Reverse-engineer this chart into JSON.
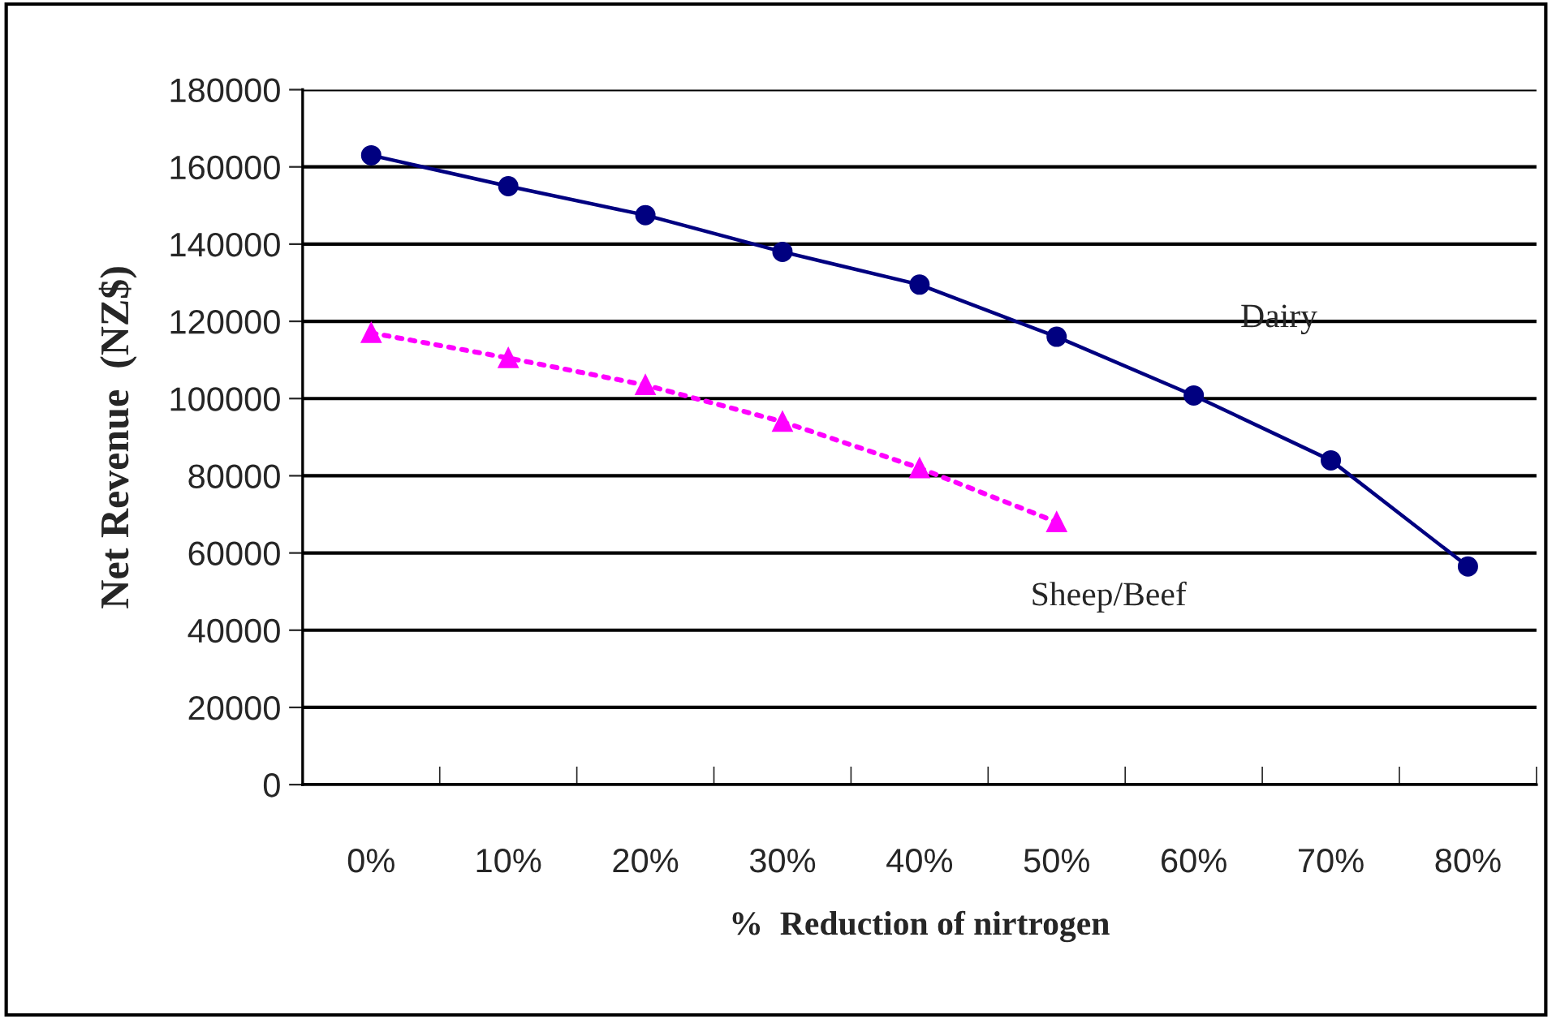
{
  "chart_data": {
    "type": "line",
    "xlabel": "%  Reduction of nirtrogen",
    "ylabel": "Net Revenue  (NZ$)",
    "categories": [
      "0%",
      "10%",
      "20%",
      "30%",
      "40%",
      "50%",
      "60%",
      "70%",
      "80%"
    ],
    "series": [
      {
        "name": "Dairy",
        "color": "#000080",
        "marker": "circle",
        "line_style": "solid",
        "values": [
          163000,
          155000,
          147500,
          138000,
          129500,
          116000,
          100800,
          84000,
          56500
        ]
      },
      {
        "name": "Sheep/Beef",
        "color": "#ff00ff",
        "marker": "triangle",
        "line_style": "dotted",
        "values": [
          117000,
          110500,
          103500,
          94000,
          82000,
          68000,
          null,
          null,
          null
        ]
      }
    ],
    "ylim": [
      0,
      180000
    ],
    "yticks": [
      0,
      20000,
      40000,
      60000,
      80000,
      100000,
      120000,
      140000,
      160000,
      180000
    ],
    "grid": "y",
    "legend": false
  }
}
